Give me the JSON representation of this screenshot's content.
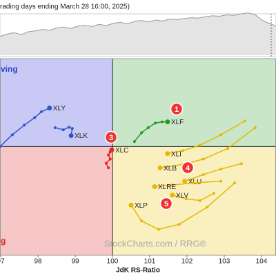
{
  "chart_data": [
    {
      "type": "area",
      "title": "rading days ending March 28 16:00, 2025)",
      "color": "#999999",
      "values": [
        40,
        45,
        48,
        44,
        50,
        52,
        55,
        53,
        58,
        60,
        57,
        62,
        64,
        61,
        66,
        63,
        68,
        70,
        67,
        72,
        74,
        71,
        75,
        73,
        77,
        76,
        78,
        80,
        79,
        82,
        84,
        83,
        86,
        85,
        88,
        90,
        87,
        75,
        68,
        62
      ],
      "ylim": [
        0,
        100
      ]
    },
    {
      "type": "rrg",
      "xlabel": "JdK RS-Ratio",
      "watermark": "StockCharts.com / RRG®",
      "xlim": [
        96.98,
        104.39
      ],
      "ylim": [
        97.4,
        102.1
      ],
      "xticks": [
        97,
        98,
        99,
        100,
        101,
        102,
        103,
        104
      ],
      "center": 100,
      "quadrants": [
        {
          "label": "ving",
          "color": "#c9c9f5",
          "text_color": "#3344cc"
        },
        {
          "label": "",
          "color": "#c9e6c9",
          "text_color": "#228822"
        },
        {
          "label": "g",
          "color": "#f7c6c6",
          "text_color": "#dd2222"
        },
        {
          "label": "",
          "color": "#f9efbf",
          "text_color": "#cc9900"
        }
      ],
      "annotations": [
        "1",
        "3",
        "4",
        "5"
      ],
      "series": [
        {
          "name": "XLY",
          "color": "#3355cc",
          "x": [
            96.98,
            97.31,
            97.63,
            97.91,
            98.09,
            98.31
          ],
          "y": [
            100,
            100.28,
            100.51,
            100.69,
            100.83,
            100.92
          ]
        },
        {
          "name": "XLK",
          "color": "#3355cc",
          "x": [
            98.46,
            98.68,
            98.83,
            98.92,
            98.89
          ],
          "y": [
            100.45,
            100.4,
            100.46,
            100.43,
            100.26
          ]
        },
        {
          "name": "XLF",
          "color": "#229922",
          "x": [
            100.59,
            100.78,
            100.96,
            101.15,
            101.33,
            101.48
          ],
          "y": [
            100.12,
            100.33,
            100.45,
            100.56,
            100.59,
            100.59
          ]
        },
        {
          "name": "XLC",
          "color": "#ee2222",
          "x": [
            99.89,
            99.83,
            99.94,
            99.89,
            99.94,
            99.98
          ],
          "y": [
            99.49,
            99.6,
            99.7,
            99.8,
            99.87,
            99.92
          ]
        },
        {
          "name": "XLI",
          "color": "#e6b800",
          "x": [
            103.55,
            102.91,
            102.35,
            101.89,
            101.48
          ],
          "y": [
            100.61,
            100.28,
            100.03,
            99.9,
            99.83
          ]
        },
        {
          "name": "XLB",
          "color": "#e6b800",
          "x": [
            103.83,
            103.09,
            102.44,
            101.89,
            101.28
          ],
          "y": [
            100.45,
            99.95,
            99.7,
            99.57,
            99.49
          ]
        },
        {
          "name": "XLU",
          "color": "#e6b800",
          "x": [
            103.46,
            102.91,
            102.44,
            101.94
          ],
          "y": [
            99.59,
            99.46,
            99.33,
            99.17
          ]
        },
        {
          "name": "XLRE",
          "color": "#e6b800",
          "x": [
            102.91,
            102.17,
            101.61,
            101.13
          ],
          "y": [
            99.17,
            99.13,
            99.08,
            99.04
          ]
        },
        {
          "name": "XLV",
          "color": "#e6b800",
          "x": [
            102.72,
            102.35,
            101.98,
            101.61
          ],
          "y": [
            98.88,
            98.71,
            98.75,
            98.84
          ]
        },
        {
          "name": "XLP",
          "color": "#e6b800",
          "x": [
            103.28,
            102.54,
            101.79,
            101.24,
            100.78,
            100.5
          ],
          "y": [
            99.13,
            98.55,
            98.14,
            98.02,
            98.22,
            98.6
          ]
        }
      ]
    }
  ]
}
